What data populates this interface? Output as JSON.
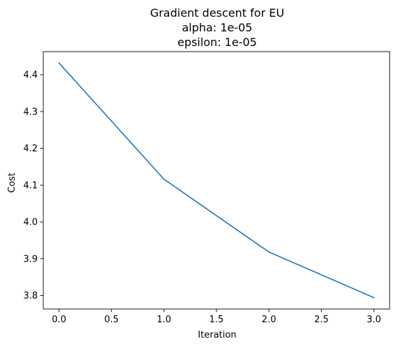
{
  "chart_data": {
    "type": "line",
    "title_lines": [
      "Gradient descent for EU",
      "alpha: 1e-05",
      "epsilon: 1e-05"
    ],
    "xlabel": "Iteration",
    "ylabel": "Cost",
    "x_ticks": [
      0.0,
      0.5,
      1.0,
      1.5,
      2.0,
      2.5,
      3.0
    ],
    "x_tick_labels": [
      "0.0",
      "0.5",
      "1.0",
      "1.5",
      "2.0",
      "2.5",
      "3.0"
    ],
    "y_ticks": [
      3.8,
      3.9,
      4.0,
      4.1,
      4.2,
      4.3,
      4.4
    ],
    "y_tick_labels": [
      "3.8",
      "3.9",
      "4.0",
      "4.1",
      "4.2",
      "4.3",
      "4.4"
    ],
    "xlim": [
      -0.15,
      3.15
    ],
    "ylim": [
      3.763,
      4.463
    ],
    "grid": false,
    "series": [
      {
        "color": "#1f77b4",
        "x": [
          0,
          1,
          2,
          3
        ],
        "y": [
          4.432,
          4.116,
          3.918,
          3.794
        ]
      }
    ]
  }
}
